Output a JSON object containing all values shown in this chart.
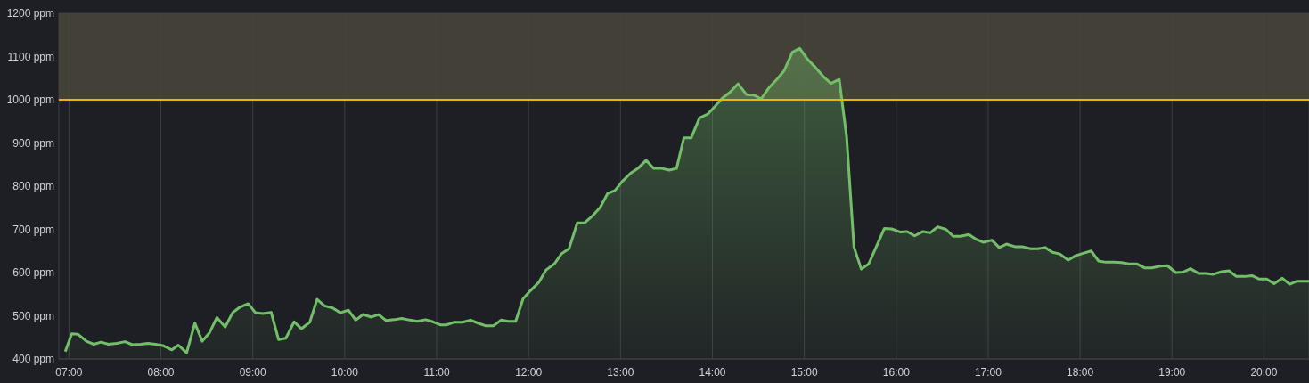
{
  "chart_data": {
    "type": "area",
    "x": [
      6.96,
      7.03,
      7.1,
      7.19,
      7.27,
      7.35,
      7.43,
      7.52,
      7.61,
      7.69,
      7.78,
      7.86,
      7.94,
      8.02,
      8.12,
      8.19,
      8.28,
      8.37,
      8.45,
      8.53,
      8.61,
      8.7,
      8.78,
      8.86,
      8.95,
      9.03,
      9.11,
      9.2,
      9.28,
      9.36,
      9.45,
      9.53,
      9.62,
      9.7,
      9.78,
      9.87,
      9.95,
      10.04,
      10.12,
      10.2,
      10.29,
      10.37,
      10.45,
      10.54,
      10.62,
      10.71,
      10.79,
      10.88,
      10.96,
      11.04,
      11.11,
      11.19,
      11.28,
      11.37,
      11.45,
      11.53,
      11.62,
      11.7,
      11.78,
      11.86,
      11.94,
      12.02,
      12.11,
      12.19,
      12.28,
      12.36,
      12.44,
      12.53,
      12.61,
      12.69,
      12.78,
      12.86,
      12.94,
      13.02,
      13.11,
      13.19,
      13.28,
      13.36,
      13.45,
      13.53,
      13.61,
      13.69,
      13.77,
      13.86,
      13.95,
      14.03,
      14.11,
      14.19,
      14.28,
      14.37,
      14.45,
      14.53,
      14.62,
      14.7,
      14.78,
      14.87,
      14.95,
      15.03,
      15.12,
      15.21,
      15.29,
      15.38,
      15.46,
      15.54,
      15.62,
      15.7,
      15.79,
      15.87,
      15.95,
      16.04,
      16.12,
      16.2,
      16.29,
      16.37,
      16.45,
      16.54,
      16.62,
      16.7,
      16.79,
      16.87,
      16.95,
      17.04,
      17.12,
      17.2,
      17.29,
      17.37,
      17.46,
      17.54,
      17.62,
      17.7,
      17.78,
      17.87,
      17.95,
      18.04,
      18.12,
      18.2,
      18.28,
      18.37,
      18.45,
      18.53,
      18.62,
      18.7,
      18.78,
      18.87,
      18.95,
      19.04,
      19.12,
      19.2,
      19.29,
      19.37,
      19.45,
      19.54,
      19.62,
      19.7,
      19.79,
      19.87,
      19.95,
      20.03,
      20.11,
      20.2,
      20.28,
      20.36,
      20.45,
      20.49
    ],
    "series": [
      {
        "color": "#73bf69",
        "values": [
          417,
          458,
          457,
          441,
          434,
          439,
          434,
          436,
          440,
          433,
          434,
          436,
          434,
          431,
          421,
          432,
          414,
          483,
          441,
          461,
          496,
          474,
          507,
          520,
          528,
          507,
          505,
          508,
          445,
          448,
          486,
          470,
          485,
          538,
          523,
          518,
          507,
          513,
          490,
          503,
          497,
          503,
          489,
          491,
          494,
          490,
          487,
          491,
          486,
          479,
          479,
          485,
          485,
          490,
          483,
          477,
          477,
          490,
          487,
          487,
          539,
          558,
          577,
          606,
          620,
          644,
          655,
          715,
          715,
          730,
          751,
          783,
          790,
          811,
          830,
          841,
          860,
          841,
          841,
          837,
          841,
          912,
          912,
          958,
          967,
          985,
          1004,
          1017,
          1037,
          1012,
          1011,
          1002,
          1029,
          1047,
          1067,
          1110,
          1119,
          1095,
          1075,
          1053,
          1038,
          1047,
          914,
          659,
          608,
          620,
          663,
          702,
          701,
          694,
          695,
          685,
          695,
          692,
          706,
          700,
          684,
          684,
          688,
          677,
          670,
          675,
          658,
          666,
          660,
          660,
          655,
          655,
          658,
          647,
          643,
          629,
          639,
          645,
          650,
          627,
          624,
          624,
          623,
          620,
          620,
          611,
          611,
          615,
          616,
          600,
          601,
          609,
          598,
          598,
          596,
          602,
          604,
          591,
          591,
          593,
          585,
          585,
          574,
          587,
          573,
          580,
          580,
          580
        ]
      }
    ],
    "xlim": [
      6.89,
      20.49
    ],
    "xticks": [
      {
        "value": 7,
        "label": "07:00"
      },
      {
        "value": 8,
        "label": "08:00"
      },
      {
        "value": 9,
        "label": "09:00"
      },
      {
        "value": 10,
        "label": "10:00"
      },
      {
        "value": 11,
        "label": "11:00"
      },
      {
        "value": 12,
        "label": "12:00"
      },
      {
        "value": 13,
        "label": "13:00"
      },
      {
        "value": 14,
        "label": "14:00"
      },
      {
        "value": 15,
        "label": "15:00"
      },
      {
        "value": 16,
        "label": "16:00"
      },
      {
        "value": 17,
        "label": "17:00"
      },
      {
        "value": 18,
        "label": "18:00"
      },
      {
        "value": 19,
        "label": "19:00"
      },
      {
        "value": 20,
        "label": "20:00"
      }
    ],
    "ylim": [
      400,
      1200
    ],
    "yticks": [
      {
        "value": 400,
        "label": "400 ppm"
      },
      {
        "value": 500,
        "label": "500 ppm"
      },
      {
        "value": 600,
        "label": "600 ppm"
      },
      {
        "value": 700,
        "label": "700 ppm"
      },
      {
        "value": 800,
        "label": "800 ppm"
      },
      {
        "value": 900,
        "label": "900 ppm"
      },
      {
        "value": 1000,
        "label": "1000 ppm"
      },
      {
        "value": 1100,
        "label": "1100 ppm"
      },
      {
        "value": 1200,
        "label": "1200 ppm"
      }
    ],
    "grid": true,
    "bands": [
      {
        "axis": "y",
        "from": 1000,
        "to": 1200,
        "color": "#47443a"
      }
    ],
    "ref_lines": [
      {
        "axis": "y",
        "value": 1000,
        "color": "#e5b80b"
      }
    ]
  }
}
